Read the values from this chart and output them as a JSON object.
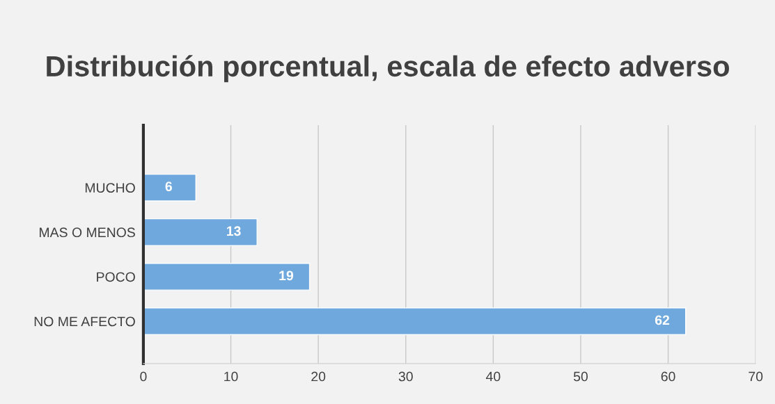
{
  "chart_data": {
    "type": "bar",
    "orientation": "horizontal",
    "title": "Distribución porcentual, escala de efecto adverso",
    "categories": [
      "MUCHO",
      "MAS O MENOS",
      "POCO",
      "NO ME AFECTO"
    ],
    "values": [
      6,
      13,
      19,
      62
    ],
    "color": "#6fa8dc",
    "xlim": [
      0,
      70
    ],
    "xticks": [
      0,
      10,
      20,
      30,
      40,
      50,
      60,
      70
    ],
    "grid": "x",
    "data_labels": true
  }
}
